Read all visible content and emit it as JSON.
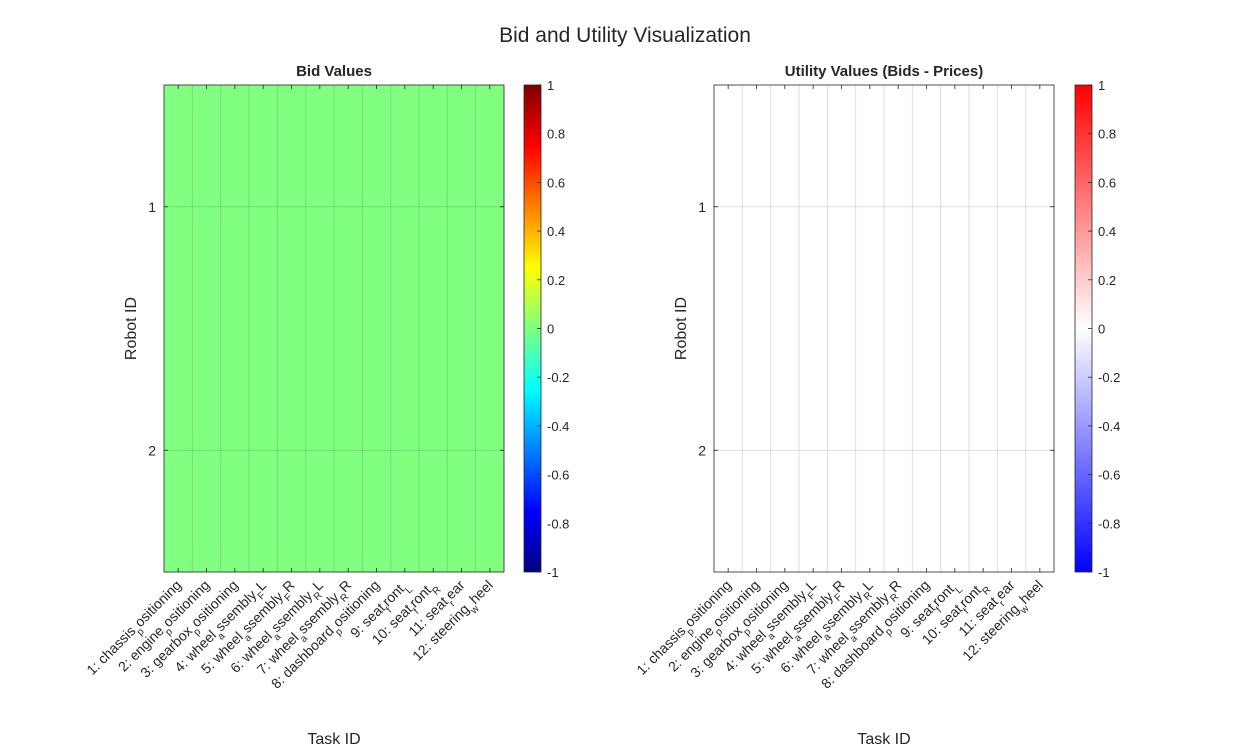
{
  "figure_title": "Bid and Utility Visualization",
  "chart_data": [
    {
      "type": "heatmap",
      "title": "Bid Values",
      "xlabel": "Task ID",
      "ylabel": "Robot ID",
      "x_ticklabels": [
        "1: chassis_positioning",
        "2: engine_positioning",
        "3: gearbox_positioning",
        "4: wheel_assembly_FL",
        "5: wheel_assembly_FR",
        "6: wheel_assembly_RL",
        "7: wheel_assembly_RR",
        "8: dashboard_positioning",
        "9: seat_front_L",
        "10: seat_front_R",
        "11: seat_rear",
        "12: steering_wheel"
      ],
      "y_ticklabels": [
        "1",
        "2"
      ],
      "values": [
        [
          0,
          0,
          0,
          0,
          0,
          0,
          0,
          0,
          0,
          0,
          0,
          0
        ],
        [
          0,
          0,
          0,
          0,
          0,
          0,
          0,
          0,
          0,
          0,
          0,
          0
        ]
      ],
      "colormap": "jet",
      "clim": [
        -1,
        1
      ],
      "colorbar_ticks": [
        -1,
        -0.8,
        -0.6,
        -0.4,
        -0.2,
        0,
        0.2,
        0.4,
        0.6,
        0.8,
        1
      ],
      "colorbar_ticklabels": [
        "-1",
        "-0.8",
        "-0.6",
        "-0.4",
        "-0.2",
        "0",
        "0.2",
        "0.4",
        "0.6",
        "0.8",
        "1"
      ],
      "cell_color": "#80ff80",
      "grid": true
    },
    {
      "type": "heatmap",
      "title": "Utility Values (Bids - Prices)",
      "xlabel": "Task ID",
      "ylabel": "Robot ID",
      "x_ticklabels": [
        "1: chassis_positioning",
        "2: engine_positioning",
        "3: gearbox_positioning",
        "4: wheel_assembly_FL",
        "5: wheel_assembly_FR",
        "6: wheel_assembly_RL",
        "7: wheel_assembly_RR",
        "8: dashboard_positioning",
        "9: seat_front_L",
        "10: seat_front_R",
        "11: seat_rear",
        "12: steering_wheel"
      ],
      "y_ticklabels": [
        "1",
        "2"
      ],
      "values": [
        [
          0,
          0,
          0,
          0,
          0,
          0,
          0,
          0,
          0,
          0,
          0,
          0
        ],
        [
          0,
          0,
          0,
          0,
          0,
          0,
          0,
          0,
          0,
          0,
          0,
          0
        ]
      ],
      "colormap": "blue-white-red",
      "clim": [
        -1,
        1
      ],
      "colorbar_ticks": [
        -1,
        -0.8,
        -0.6,
        -0.4,
        -0.2,
        0,
        0.2,
        0.4,
        0.6,
        0.8,
        1
      ],
      "colorbar_ticklabels": [
        "-1",
        "-0.8",
        "-0.6",
        "-0.4",
        "-0.2",
        "0",
        "0.2",
        "0.4",
        "0.6",
        "0.8",
        "1"
      ],
      "cell_color": "#ffffff",
      "grid": true
    }
  ]
}
